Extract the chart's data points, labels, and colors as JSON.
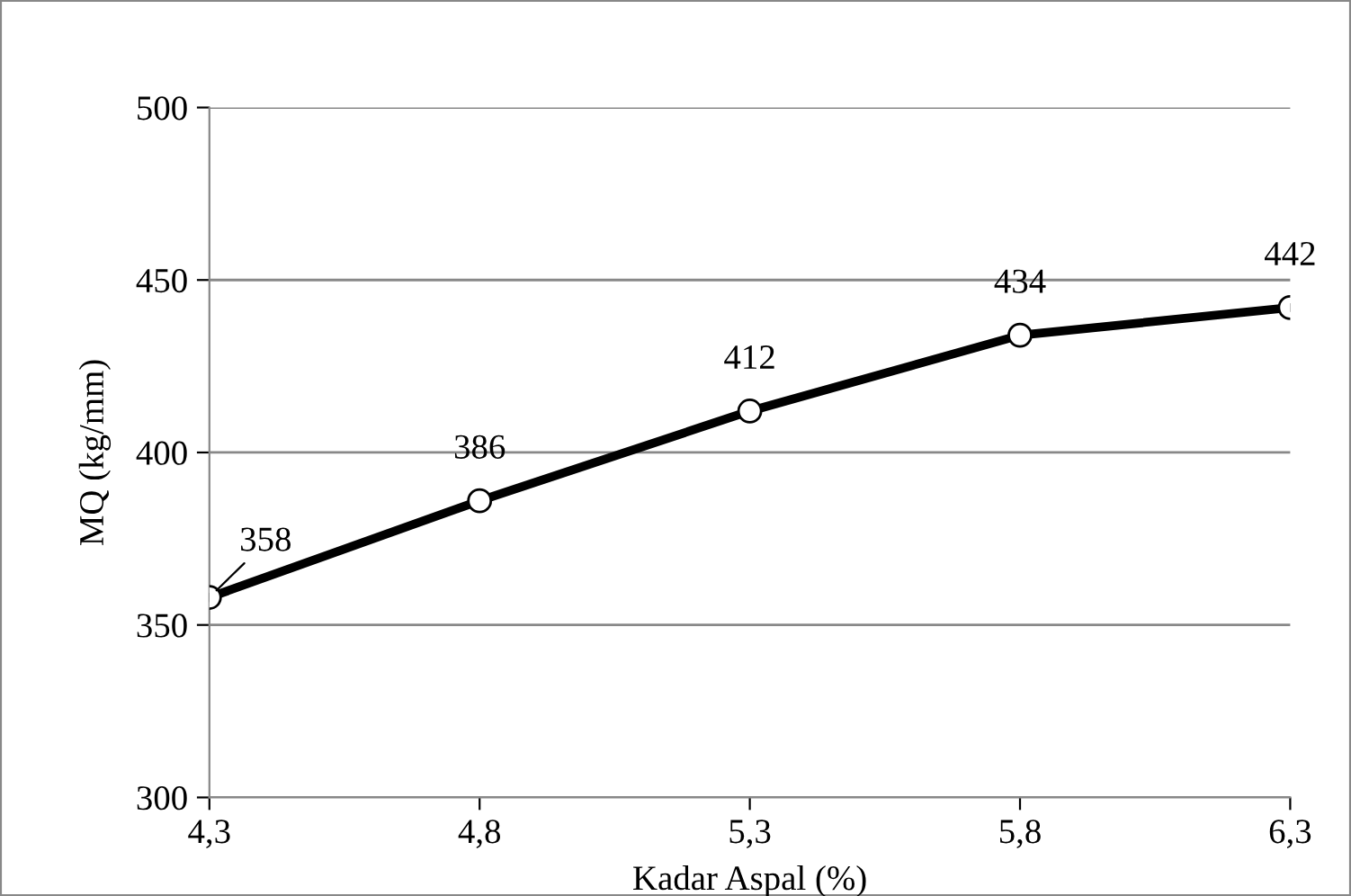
{
  "chart_data": {
    "type": "line",
    "xlabel": "Kadar Aspal (%)",
    "ylabel": "MQ (kg/mm)",
    "x": [
      4.3,
      4.8,
      5.3,
      5.8,
      6.3
    ],
    "series": [
      {
        "color": "#000000",
        "values": [
          358,
          386,
          412,
          434,
          442
        ]
      }
    ],
    "xlim": [
      4.3,
      6.3
    ],
    "xticks": [
      {
        "value": 4.3,
        "label": "4,3"
      },
      {
        "value": 4.8,
        "label": "4,8"
      },
      {
        "value": 5.3,
        "label": "5,3"
      },
      {
        "value": 5.8,
        "label": "5,8"
      },
      {
        "value": 6.3,
        "label": "6,3"
      }
    ],
    "ylim": [
      300,
      500
    ],
    "yticks": [
      300,
      350,
      400,
      450,
      500
    ],
    "grid": "y",
    "marker": "circle",
    "line_style": "solid",
    "data_labels": true,
    "legend": false
  }
}
